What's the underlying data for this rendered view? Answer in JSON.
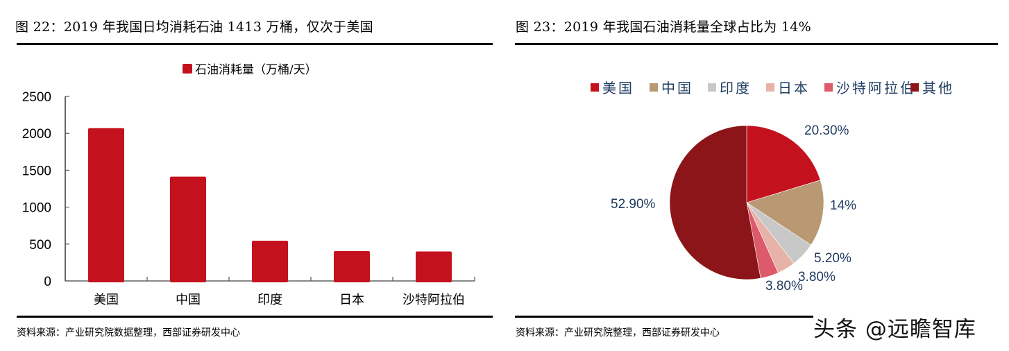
{
  "left_figure": {
    "title": "图 22：2019 年我国日均消耗石油 1413 万桶，仅次于美国",
    "source": "资料来源：产业研究院数据整理，西部证券研发中心"
  },
  "right_figure": {
    "title": "图 23：2019 年我国石油消耗量全球占比为 14%",
    "source": "资料来源：产业研究院整理，西部证券研发中心"
  },
  "watermark": "头条 @远瞻智库",
  "chart_data": [
    {
      "type": "bar",
      "title": "图 22：2019 年我国日均消耗石油 1413 万桶，仅次于美国",
      "legend": [
        "石油消耗量（万桶/天）"
      ],
      "legend_position": "top",
      "categories": [
        "美国",
        "中国",
        "印度",
        "日本",
        "沙特阿拉伯"
      ],
      "values": [
        2070,
        1413,
        545,
        404,
        400
      ],
      "series": [
        {
          "name": "石油消耗量（万桶/天）",
          "values": [
            2070,
            1413,
            545,
            404,
            400
          ],
          "color": "#C4111E"
        }
      ],
      "xlabel": "",
      "ylabel": "",
      "ylim": [
        0,
        2500
      ],
      "yticks": [
        "0",
        "500",
        "1000",
        "1500",
        "2000",
        "2500"
      ],
      "grid": false
    },
    {
      "type": "pie",
      "title": "图 23：2019 年我国石油消耗量全球占比为 14%",
      "legend_position": "top",
      "categories": [
        "美国",
        "中国",
        "印度",
        "日本",
        "沙特阿拉伯",
        "其他"
      ],
      "values": [
        20.3,
        14,
        5.2,
        3.8,
        3.8,
        52.9
      ],
      "labels": [
        "20.30%",
        "14%",
        "5.20%",
        "3.80%",
        "3.80%",
        "52.90%"
      ],
      "colors": [
        "#C4111E",
        "#B99874",
        "#C8C8C8",
        "#E8B2A8",
        "#DC5A6A",
        "#8B1518"
      ],
      "start_angle": "12 o'clock, clockwise"
    }
  ]
}
